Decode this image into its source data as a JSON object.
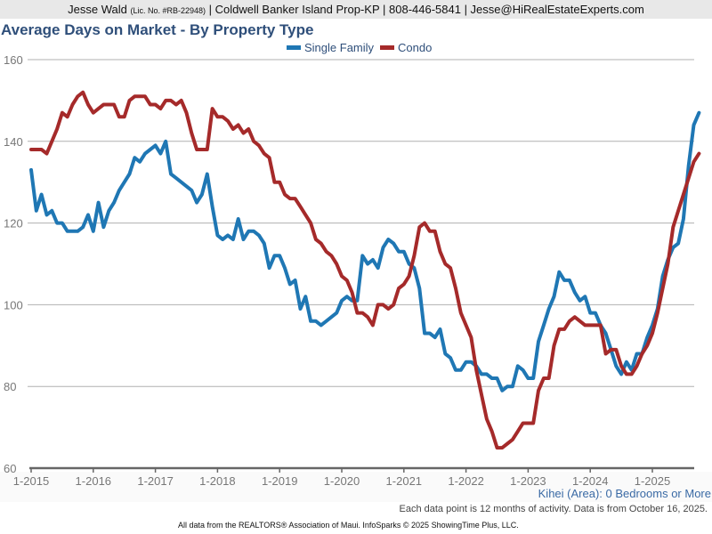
{
  "header": {
    "agent_name": "Jesse Wald",
    "license": "(Lic. No. #RB-22948)",
    "rest": "| Coldwell Banker Island Prop-KP | 808-446-5841 | Jesse@HiRealEstateExperts.com"
  },
  "chart_title": "Average Days on Market - By Property Type",
  "area_note": "Kihei (Area): 0 Bedrooms or More",
  "footnote": "Each data point is 12 months of activity. Data is from October 16, 2025.",
  "source": "All data from the REALTORS® Association of Maui. InfoSparks © 2025 ShowingTime Plus, LLC.",
  "chart_data": {
    "type": "line",
    "title": "Average Days on Market - By Property Type",
    "xlabel": "",
    "ylabel": "",
    "ylim": [
      60,
      160
    ],
    "yticks": [
      60,
      80,
      100,
      120,
      140,
      160
    ],
    "xticks": [
      "1-2015",
      "1-2016",
      "1-2017",
      "1-2018",
      "1-2019",
      "1-2020",
      "1-2021",
      "1-2022",
      "1-2023",
      "1-2024",
      "1-2025"
    ],
    "x_start": "1-2015",
    "x_interval": "monthly",
    "grid": true,
    "legend_position": "top-center",
    "series": [
      {
        "name": "Single Family",
        "color": "#1f77b4",
        "values": [
          133,
          123,
          127,
          122,
          123,
          120,
          120,
          118,
          118,
          118,
          119,
          122,
          118,
          125,
          119,
          123,
          125,
          128,
          130,
          132,
          136,
          135,
          137,
          138,
          139,
          137,
          140,
          132,
          131,
          130,
          129,
          128,
          125,
          127,
          132,
          124,
          117,
          116,
          117,
          116,
          121,
          116,
          118,
          118,
          117,
          115,
          109,
          112,
          112,
          109,
          105,
          106,
          99,
          102,
          96,
          96,
          95,
          96,
          97,
          98,
          101,
          102,
          101,
          101,
          112,
          110,
          111,
          109,
          114,
          116,
          115,
          113,
          113,
          110,
          109,
          104,
          93,
          93,
          92,
          94,
          88,
          87,
          84,
          84,
          86,
          86,
          85,
          83,
          83,
          82,
          82,
          79,
          80,
          80,
          85,
          84,
          82,
          82,
          91,
          95,
          99,
          102,
          108,
          106,
          106,
          103,
          101,
          102,
          98,
          98,
          95,
          93,
          89,
          85,
          83,
          86,
          84,
          88,
          88,
          92,
          95,
          99,
          107,
          111,
          114,
          115,
          121,
          134,
          144,
          147
        ],
        "values_note": "monthly, Jan 2015 onward"
      },
      {
        "name": "Condo",
        "color": "#a52a2a",
        "values": [
          138,
          138,
          138,
          137,
          140,
          143,
          147,
          146,
          149,
          151,
          152,
          149,
          147,
          148,
          149,
          149,
          149,
          146,
          146,
          150,
          151,
          151,
          151,
          149,
          149,
          148,
          150,
          150,
          149,
          150,
          147,
          142,
          138,
          138,
          138,
          148,
          146,
          146,
          145,
          143,
          144,
          142,
          143,
          140,
          139,
          137,
          136,
          130,
          130,
          127,
          126,
          126,
          124,
          122,
          120,
          116,
          115,
          113,
          112,
          110,
          107,
          106,
          103,
          98,
          98,
          97,
          95,
          100,
          100,
          99,
          100,
          104,
          105,
          107,
          112,
          119,
          120,
          118,
          118,
          113,
          110,
          109,
          104,
          98,
          95,
          92,
          84,
          78,
          72,
          69,
          65,
          65,
          66,
          67,
          69,
          71,
          71,
          71,
          79,
          82,
          82,
          90,
          94,
          94,
          96,
          97,
          96,
          95,
          95,
          95,
          95,
          88,
          89,
          89,
          85,
          83,
          83,
          85,
          88,
          90,
          93,
          98,
          104,
          110,
          119,
          123,
          127,
          131,
          135,
          137
        ],
        "values_note": "monthly, Jan 2015 onward"
      }
    ]
  }
}
